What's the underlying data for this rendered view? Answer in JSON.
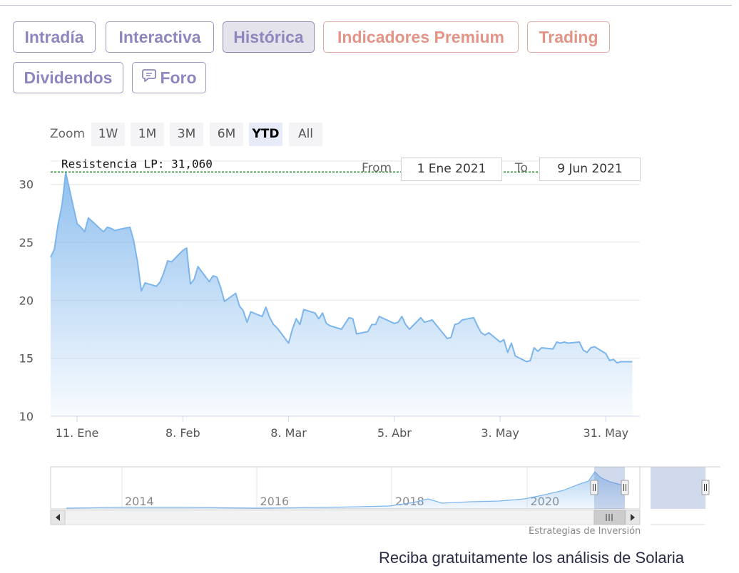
{
  "tabs": {
    "intradia": "Intradía",
    "interactiva": "Interactiva",
    "historica": "Histórica",
    "premium": "Indicadores Premium",
    "trading": "Trading",
    "dividendos": "Dividendos",
    "foro": "Foro"
  },
  "zoom": {
    "label": "Zoom",
    "buttons": [
      "1W",
      "1M",
      "3M",
      "6M",
      "YTD",
      "All"
    ],
    "selected": "YTD"
  },
  "range": {
    "from_label": "From",
    "from_value": "1 Ene 2021",
    "to_label": "To",
    "to_value": "9 Jun 2021"
  },
  "chart_data": {
    "type": "area",
    "title": "",
    "xlabel": "",
    "ylabel": "",
    "ylim": [
      10,
      32
    ],
    "y_ticks": [
      10,
      15,
      20,
      25,
      30
    ],
    "x_ticks": [
      {
        "date": "2021-01-11",
        "label": "11. Ene"
      },
      {
        "date": "2021-02-08",
        "label": "8. Feb"
      },
      {
        "date": "2021-03-08",
        "label": "8. Mar"
      },
      {
        "date": "2021-04-05",
        "label": "5. Abr"
      },
      {
        "date": "2021-05-03",
        "label": "3. May"
      },
      {
        "date": "2021-05-31",
        "label": "31. May"
      }
    ],
    "xlim": [
      "2021-01-04",
      "2021-06-09"
    ],
    "resistance": {
      "label": "Resistencia LP: 31,060",
      "value": 31.06,
      "color": "#0a7a14"
    },
    "series_color": "#7cb5ec",
    "series": [
      {
        "points": [
          [
            "2021-01-04",
            23.7
          ],
          [
            "2021-01-05",
            24.4
          ],
          [
            "2021-01-06",
            26.6
          ],
          [
            "2021-01-07",
            28.2
          ],
          [
            "2021-01-08",
            31.0
          ],
          [
            "2021-01-11",
            26.6
          ],
          [
            "2021-01-12",
            26.3
          ],
          [
            "2021-01-13",
            25.9
          ],
          [
            "2021-01-14",
            27.1
          ],
          [
            "2021-01-15",
            26.8
          ],
          [
            "2021-01-18",
            25.9
          ],
          [
            "2021-01-19",
            26.3
          ],
          [
            "2021-01-20",
            26.2
          ],
          [
            "2021-01-21",
            26.0
          ],
          [
            "2021-01-22",
            26.1
          ],
          [
            "2021-01-25",
            26.3
          ],
          [
            "2021-01-26",
            25.1
          ],
          [
            "2021-01-27",
            23.3
          ],
          [
            "2021-01-28",
            20.8
          ],
          [
            "2021-01-29",
            21.5
          ],
          [
            "2021-02-01",
            21.2
          ],
          [
            "2021-02-02",
            21.6
          ],
          [
            "2021-02-03",
            22.4
          ],
          [
            "2021-02-04",
            23.4
          ],
          [
            "2021-02-05",
            23.3
          ],
          [
            "2021-02-08",
            24.3
          ],
          [
            "2021-02-09",
            24.5
          ],
          [
            "2021-02-10",
            21.4
          ],
          [
            "2021-02-11",
            21.8
          ],
          [
            "2021-02-12",
            22.9
          ],
          [
            "2021-02-15",
            21.6
          ],
          [
            "2021-02-16",
            22.1
          ],
          [
            "2021-02-17",
            22.0
          ],
          [
            "2021-02-18",
            21.1
          ],
          [
            "2021-02-19",
            19.9
          ],
          [
            "2021-02-22",
            20.6
          ],
          [
            "2021-02-23",
            19.5
          ],
          [
            "2021-02-24",
            19.1
          ],
          [
            "2021-02-25",
            18.1
          ],
          [
            "2021-02-26",
            19.0
          ],
          [
            "2021-03-01",
            18.6
          ],
          [
            "2021-03-02",
            19.4
          ],
          [
            "2021-03-03",
            18.5
          ],
          [
            "2021-03-04",
            17.9
          ],
          [
            "2021-03-05",
            17.6
          ],
          [
            "2021-03-08",
            16.3
          ],
          [
            "2021-03-09",
            17.5
          ],
          [
            "2021-03-10",
            18.4
          ],
          [
            "2021-03-11",
            17.9
          ],
          [
            "2021-03-12",
            19.2
          ],
          [
            "2021-03-15",
            18.9
          ],
          [
            "2021-03-16",
            18.4
          ],
          [
            "2021-03-17",
            18.9
          ],
          [
            "2021-03-18",
            18.0
          ],
          [
            "2021-03-19",
            17.8
          ],
          [
            "2021-03-22",
            17.5
          ],
          [
            "2021-03-23",
            18.0
          ],
          [
            "2021-03-24",
            18.5
          ],
          [
            "2021-03-25",
            18.4
          ],
          [
            "2021-03-26",
            17.1
          ],
          [
            "2021-03-29",
            17.3
          ],
          [
            "2021-03-30",
            17.9
          ],
          [
            "2021-03-31",
            17.9
          ],
          [
            "2021-04-01",
            18.6
          ],
          [
            "2021-04-05",
            18.0
          ],
          [
            "2021-04-06",
            18.1
          ],
          [
            "2021-04-07",
            18.6
          ],
          [
            "2021-04-08",
            17.9
          ],
          [
            "2021-04-09",
            17.5
          ],
          [
            "2021-04-12",
            18.5
          ],
          [
            "2021-04-13",
            18.1
          ],
          [
            "2021-04-14",
            18.2
          ],
          [
            "2021-04-15",
            18.3
          ],
          [
            "2021-04-16",
            17.9
          ],
          [
            "2021-04-19",
            16.7
          ],
          [
            "2021-04-20",
            16.8
          ],
          [
            "2021-04-21",
            17.9
          ],
          [
            "2021-04-22",
            18.0
          ],
          [
            "2021-04-23",
            18.3
          ],
          [
            "2021-04-26",
            18.5
          ],
          [
            "2021-04-27",
            17.8
          ],
          [
            "2021-04-28",
            17.2
          ],
          [
            "2021-04-29",
            17.0
          ],
          [
            "2021-04-30",
            17.2
          ],
          [
            "2021-05-03",
            16.4
          ],
          [
            "2021-05-04",
            16.6
          ],
          [
            "2021-05-05",
            15.5
          ],
          [
            "2021-05-06",
            16.3
          ],
          [
            "2021-05-07",
            15.2
          ],
          [
            "2021-05-10",
            14.7
          ],
          [
            "2021-05-11",
            14.8
          ],
          [
            "2021-05-12",
            15.9
          ],
          [
            "2021-05-13",
            15.6
          ],
          [
            "2021-05-14",
            15.9
          ],
          [
            "2021-05-17",
            15.8
          ],
          [
            "2021-05-18",
            16.4
          ],
          [
            "2021-05-19",
            16.3
          ],
          [
            "2021-05-20",
            16.4
          ],
          [
            "2021-05-21",
            16.3
          ],
          [
            "2021-05-24",
            16.4
          ],
          [
            "2021-05-25",
            15.7
          ],
          [
            "2021-05-26",
            15.5
          ],
          [
            "2021-05-27",
            15.9
          ],
          [
            "2021-05-28",
            16.0
          ],
          [
            "2021-05-31",
            15.4
          ],
          [
            "2021-06-01",
            14.8
          ],
          [
            "2021-06-02",
            14.9
          ],
          [
            "2021-06-03",
            14.6
          ],
          [
            "2021-06-04",
            14.7
          ],
          [
            "2021-06-07",
            14.7
          ]
        ]
      }
    ],
    "navigator": {
      "year_labels": [
        "2014",
        "2016",
        "2018",
        "2020"
      ],
      "selected_range": [
        "2021-01-04",
        "2021-06-09"
      ]
    }
  },
  "credits": "Estrategias de Inversión",
  "promo": "Reciba gratuitamente los análisis de Solaria"
}
